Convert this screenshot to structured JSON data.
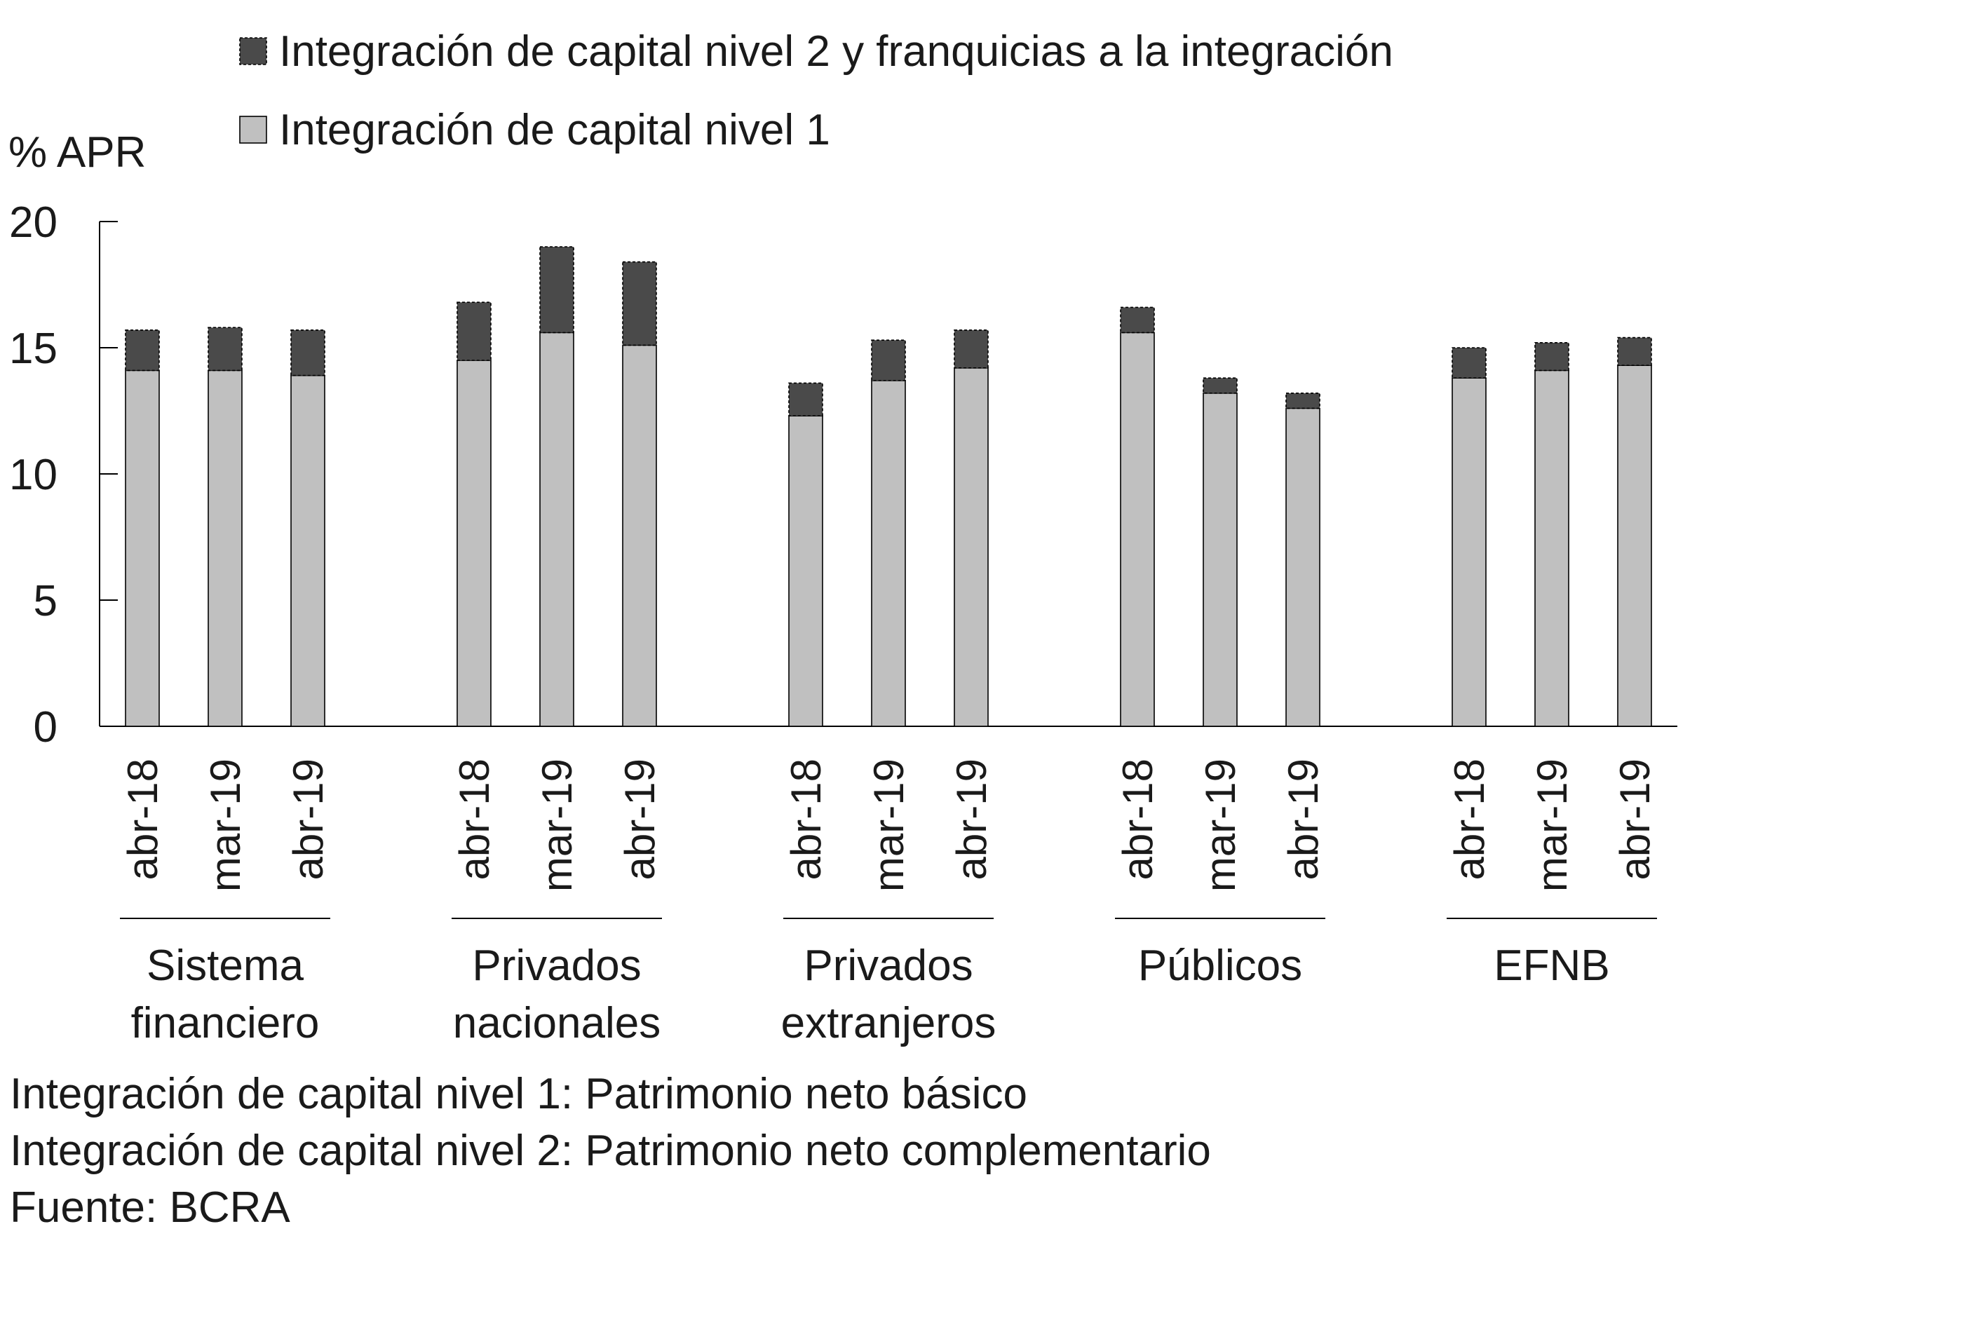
{
  "chart_data": {
    "type": "bar",
    "stacked": true,
    "ylabel": "% APR",
    "ylim": [
      0,
      20
    ],
    "yticks": [
      0,
      5,
      10,
      15,
      20
    ],
    "grid": false,
    "legend_placement": "top",
    "groups": [
      {
        "name": "Sistema financiero",
        "lines": [
          "Sistema",
          "financiero"
        ],
        "categories": [
          "abr-18",
          "mar-19",
          "abr-19"
        ]
      },
      {
        "name": "Privados nacionales",
        "lines": [
          "Privados",
          "nacionales"
        ],
        "categories": [
          "abr-18",
          "mar-19",
          "abr-19"
        ]
      },
      {
        "name": "Privados extranjeros",
        "lines": [
          "Privados",
          "extranjeros"
        ],
        "categories": [
          "abr-18",
          "mar-19",
          "abr-19"
        ]
      },
      {
        "name": "Públicos",
        "lines": [
          "Públicos"
        ],
        "categories": [
          "abr-18",
          "mar-19",
          "abr-19"
        ]
      },
      {
        "name": "EFNB",
        "lines": [
          "EFNB"
        ],
        "categories": [
          "abr-18",
          "mar-19",
          "abr-19"
        ]
      }
    ],
    "series": [
      {
        "name": "Integración de capital nivel 1",
        "color": "#c0c0c0",
        "values": [
          14.1,
          14.1,
          13.9,
          14.5,
          15.6,
          15.1,
          12.3,
          13.7,
          14.2,
          15.6,
          13.2,
          12.6,
          13.8,
          14.1,
          14.3
        ]
      },
      {
        "name": "Integración de capital nivel 2 y franquicias a la integración",
        "color": "#4a4a4a",
        "values": [
          1.6,
          1.7,
          1.8,
          2.3,
          3.4,
          3.3,
          1.3,
          1.6,
          1.5,
          1.0,
          0.6,
          0.6,
          1.2,
          1.1,
          1.1
        ]
      }
    ],
    "legend": [
      "Integración de capital nivel 2 y franquicias a la integración",
      "Integración de capital nivel 1"
    ]
  },
  "notes": [
    "Integración de capital nivel 1: Patrimonio neto básico",
    "Integración de capital nivel 2: Patrimonio neto complementario",
    "Fuente: BCRA"
  ]
}
